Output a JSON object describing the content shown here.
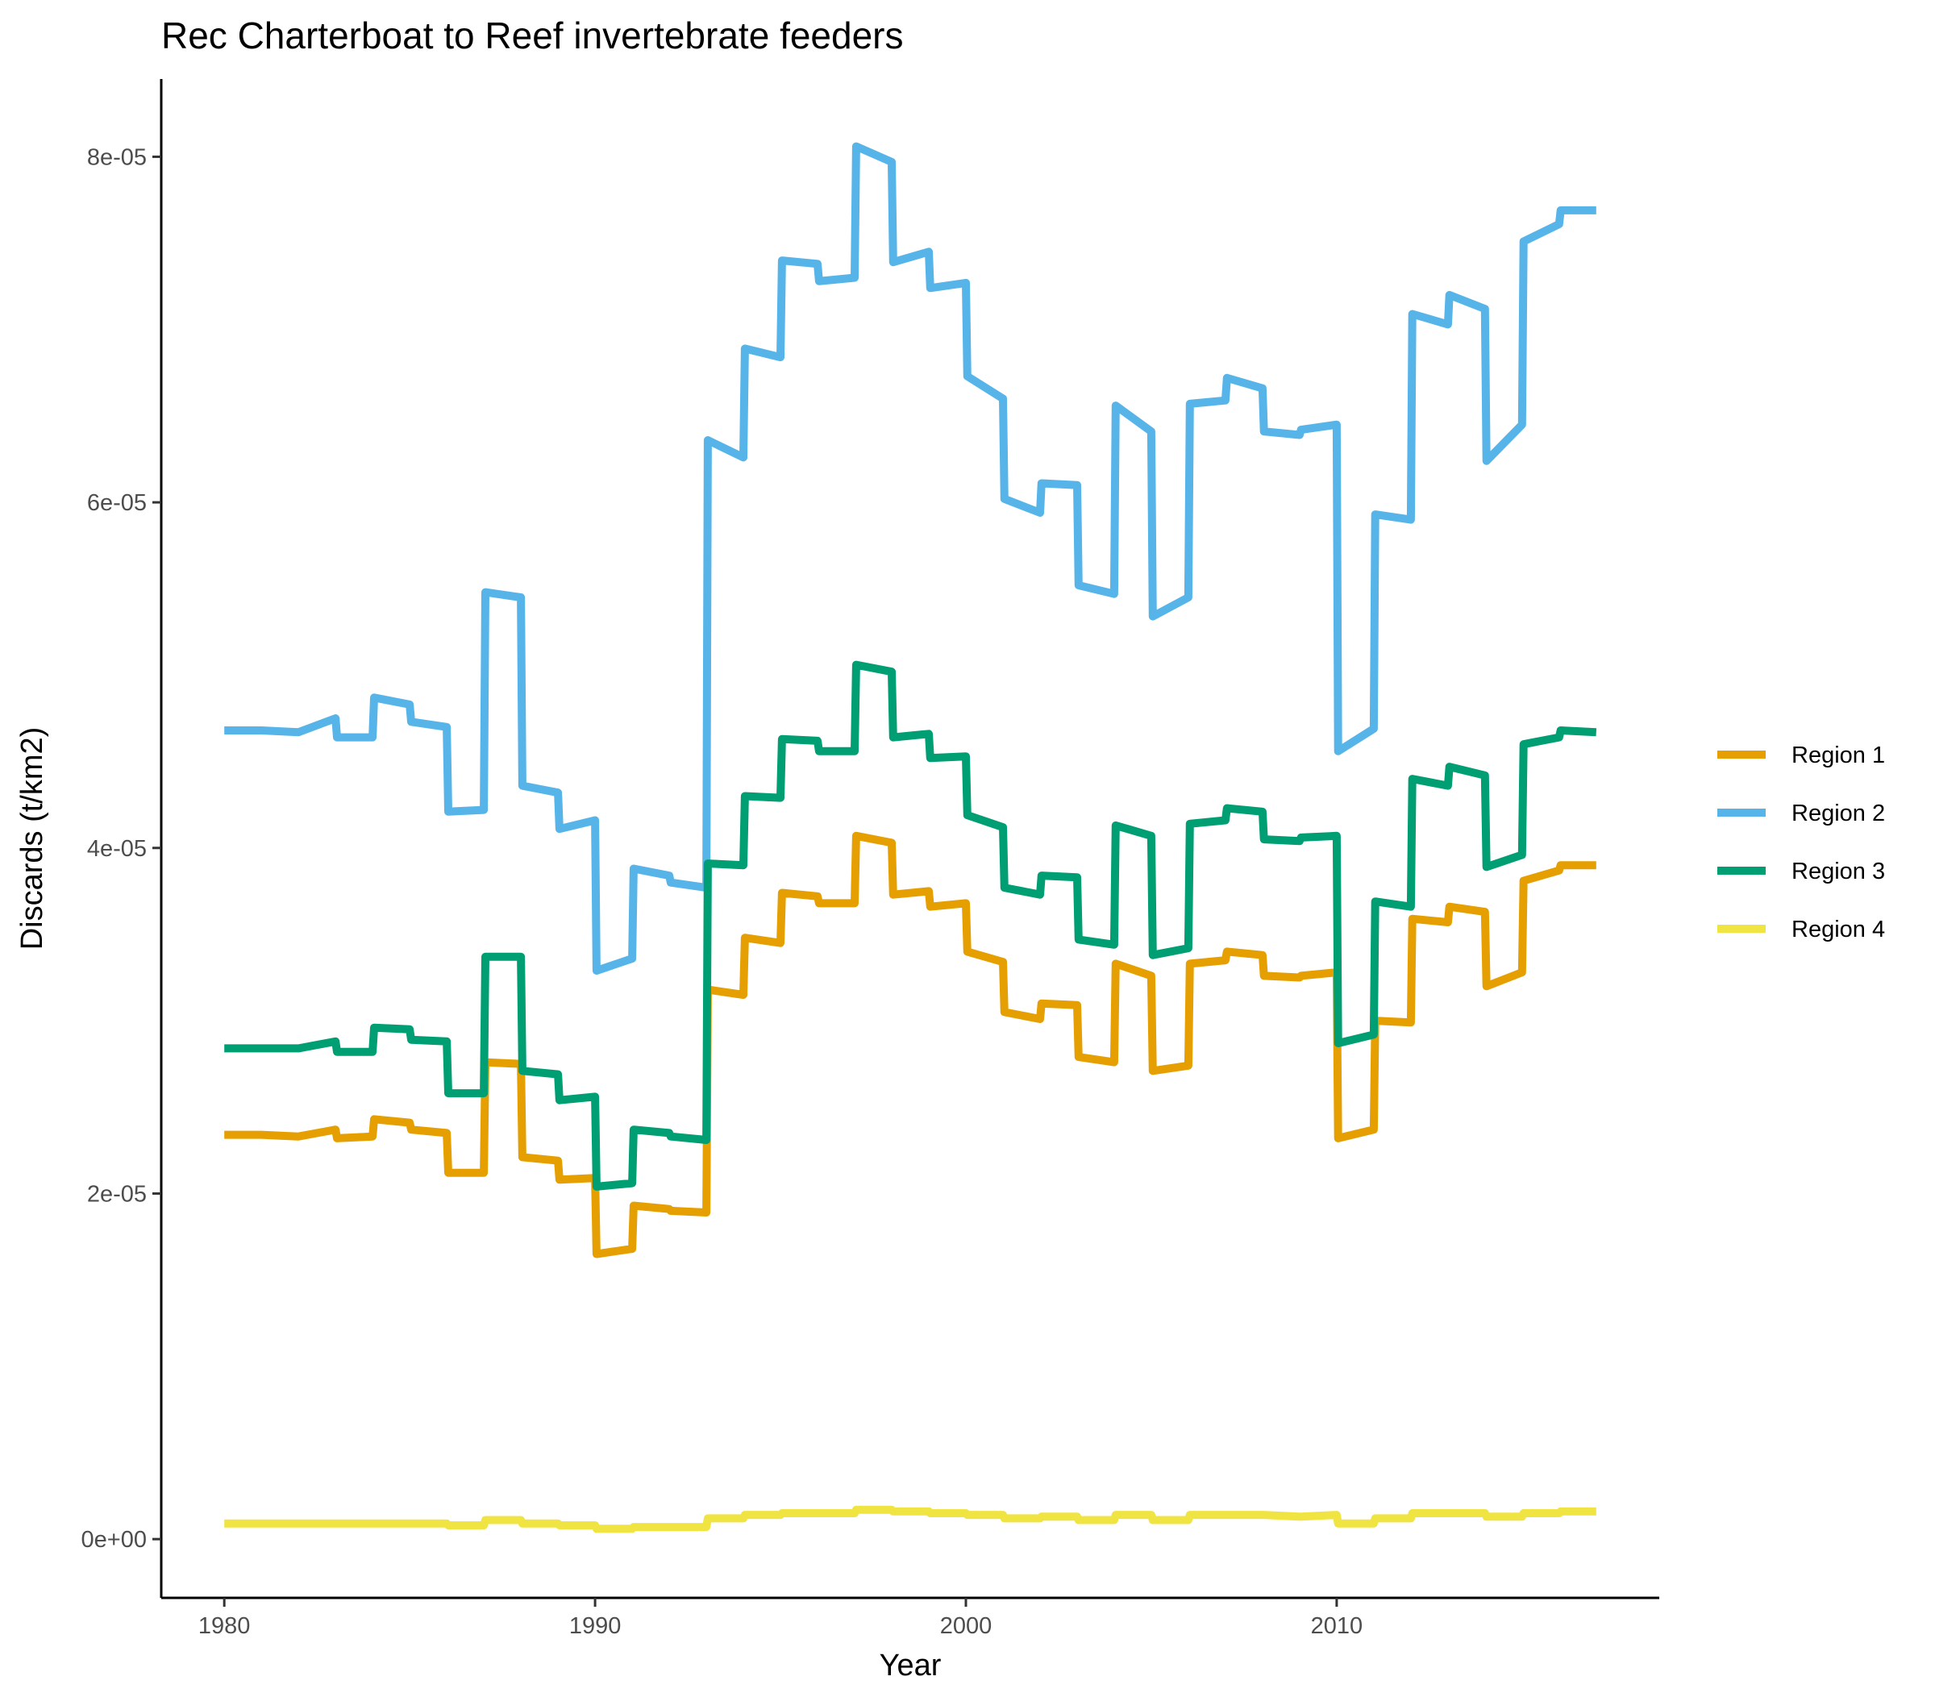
{
  "chart_data": {
    "type": "line",
    "title": "Rec Charterboat to Reef invertebrate feeders",
    "xlabel": "Year",
    "ylabel": "Discards (t/km2)",
    "xlim": [
      1978.3,
      2018.7
    ],
    "ylim": [
      -3.4e-06,
      8.45e-05
    ],
    "x_ticks": [
      1980,
      1990,
      2000,
      2010
    ],
    "y_ticks": [
      0,
      2e-05,
      4e-05,
      6e-05,
      8e-05
    ],
    "y_tick_labels": [
      "0e+00",
      "2e-05",
      "4e-05",
      "6e-05",
      "8e-05"
    ],
    "grid": false,
    "legend_position": "right",
    "x": [
      1980,
      1980.5,
      1981,
      1982,
      1983,
      1983.04,
      1984,
      1984.04,
      1985,
      1985.04,
      1986,
      1986.04,
      1987,
      1987.04,
      1988,
      1988.04,
      1989,
      1989.04,
      1990,
      1990.04,
      1991,
      1991.04,
      1992,
      1992.04,
      1993,
      1993.04,
      1994,
      1994.04,
      1995,
      1995.04,
      1996,
      1996.04,
      1997,
      1997.04,
      1998,
      1998.04,
      1999,
      1999.04,
      2000,
      2000.04,
      2001,
      2001.04,
      2002,
      2002.04,
      2003,
      2003.04,
      2004,
      2004.04,
      2005,
      2005.04,
      2006,
      2006.04,
      2007,
      2007.04,
      2008,
      2008.04,
      2009,
      2009.04,
      2010,
      2010.04,
      2011,
      2011.04,
      2012,
      2012.04,
      2013,
      2013.04,
      2014,
      2014.04,
      2015,
      2015.04,
      2016,
      2016.04,
      2017
    ],
    "series": [
      {
        "name": "Region 1",
        "color": "#E69F00",
        "values": [
          2.34e-05,
          2.34e-05,
          2.34e-05,
          2.33e-05,
          2.37e-05,
          2.32e-05,
          2.33e-05,
          2.43e-05,
          2.41e-05,
          2.37e-05,
          2.35e-05,
          2.12e-05,
          2.12e-05,
          2.76e-05,
          2.75e-05,
          2.21e-05,
          2.19e-05,
          2.08e-05,
          2.09e-05,
          1.65e-05,
          1.68e-05,
          1.93e-05,
          1.91e-05,
          1.9e-05,
          1.89e-05,
          3.18e-05,
          3.15e-05,
          3.48e-05,
          3.45e-05,
          3.74e-05,
          3.72e-05,
          3.68e-05,
          3.68e-05,
          4.07e-05,
          4.03e-05,
          3.73e-05,
          3.75e-05,
          3.66e-05,
          3.68e-05,
          3.4e-05,
          3.34e-05,
          3.05e-05,
          3.01e-05,
          3.1e-05,
          3.09e-05,
          2.79e-05,
          2.76e-05,
          3.33e-05,
          3.26e-05,
          2.71e-05,
          2.74e-05,
          3.33e-05,
          3.35e-05,
          3.4e-05,
          3.38e-05,
          3.26e-05,
          3.25e-05,
          3.26e-05,
          3.28e-05,
          2.32e-05,
          2.37e-05,
          3e-05,
          2.99e-05,
          3.59e-05,
          3.57e-05,
          3.66e-05,
          3.63e-05,
          3.2e-05,
          3.28e-05,
          3.81e-05,
          3.87e-05,
          3.9e-05,
          3.9e-05
        ]
      },
      {
        "name": "Region 2",
        "color": "#56B4E9",
        "values": [
          4.68e-05,
          4.68e-05,
          4.68e-05,
          4.67e-05,
          4.75e-05,
          4.64e-05,
          4.64e-05,
          4.87e-05,
          4.83e-05,
          4.73e-05,
          4.7e-05,
          4.21e-05,
          4.22e-05,
          5.48e-05,
          5.45e-05,
          4.36e-05,
          4.32e-05,
          4.11e-05,
          4.16e-05,
          3.29e-05,
          3.36e-05,
          3.88e-05,
          3.84e-05,
          3.8e-05,
          3.77e-05,
          6.36e-05,
          6.26e-05,
          6.89e-05,
          6.84e-05,
          7.4e-05,
          7.38e-05,
          7.28e-05,
          7.3e-05,
          8.06e-05,
          7.97e-05,
          7.39e-05,
          7.45e-05,
          7.24e-05,
          7.27e-05,
          6.73e-05,
          6.6e-05,
          6.02e-05,
          5.94e-05,
          6.11e-05,
          6.1e-05,
          5.52e-05,
          5.47e-05,
          6.56e-05,
          6.41e-05,
          5.34e-05,
          5.45e-05,
          6.57e-05,
          6.59e-05,
          6.72e-05,
          6.66e-05,
          6.41e-05,
          6.39e-05,
          6.42e-05,
          6.45e-05,
          4.56e-05,
          4.69e-05,
          5.93e-05,
          5.9e-05,
          7.09e-05,
          7.03e-05,
          7.2e-05,
          7.12e-05,
          6.24e-05,
          6.45e-05,
          7.51e-05,
          7.61e-05,
          7.69e-05,
          7.69e-05
        ]
      },
      {
        "name": "Region 3",
        "color": "#009E73",
        "values": [
          2.84e-05,
          2.84e-05,
          2.84e-05,
          2.84e-05,
          2.88e-05,
          2.82e-05,
          2.82e-05,
          2.96e-05,
          2.95e-05,
          2.89e-05,
          2.88e-05,
          2.58e-05,
          2.58e-05,
          3.37e-05,
          3.37e-05,
          2.71e-05,
          2.69e-05,
          2.54e-05,
          2.56e-05,
          2.04e-05,
          2.06e-05,
          2.37e-05,
          2.35e-05,
          2.33e-05,
          2.31e-05,
          3.91e-05,
          3.9e-05,
          4.3e-05,
          4.29e-05,
          4.63e-05,
          4.62e-05,
          4.56e-05,
          4.56e-05,
          5.06e-05,
          5.02e-05,
          4.64e-05,
          4.66e-05,
          4.52e-05,
          4.53e-05,
          4.19e-05,
          4.12e-05,
          3.77e-05,
          3.73e-05,
          3.84e-05,
          3.83e-05,
          3.47e-05,
          3.44e-05,
          4.13e-05,
          4.07e-05,
          3.38e-05,
          3.42e-05,
          4.14e-05,
          4.16e-05,
          4.23e-05,
          4.21e-05,
          4.05e-05,
          4.04e-05,
          4.06e-05,
          4.07e-05,
          2.87e-05,
          2.92e-05,
          3.69e-05,
          3.66e-05,
          4.4e-05,
          4.36e-05,
          4.47e-05,
          4.42e-05,
          3.89e-05,
          3.96e-05,
          4.6e-05,
          4.64e-05,
          4.68e-05,
          4.67e-05
        ]
      },
      {
        "name": "Region 4",
        "color": "#F0E442",
        "values": [
          9e-07,
          9e-07,
          9e-07,
          9e-07,
          9e-07,
          9e-07,
          9e-07,
          9e-07,
          9e-07,
          9e-07,
          9e-07,
          8e-07,
          8e-07,
          1.1e-06,
          1.1e-06,
          9e-07,
          9e-07,
          8e-07,
          8e-07,
          6e-07,
          6e-07,
          7e-07,
          7e-07,
          7e-07,
          7e-07,
          1.2e-06,
          1.2e-06,
          1.4e-06,
          1.4e-06,
          1.5e-06,
          1.5e-06,
          1.5e-06,
          1.5e-06,
          1.7e-06,
          1.7e-06,
          1.6e-06,
          1.6e-06,
          1.5e-06,
          1.5e-06,
          1.4e-06,
          1.4e-06,
          1.2e-06,
          1.2e-06,
          1.3e-06,
          1.3e-06,
          1.1e-06,
          1.1e-06,
          1.4e-06,
          1.4e-06,
          1.1e-06,
          1.1e-06,
          1.4e-06,
          1.4e-06,
          1.4e-06,
          1.4e-06,
          1.4e-06,
          1.3e-06,
          1.3e-06,
          1.4e-06,
          9e-07,
          9e-07,
          1.2e-06,
          1.2e-06,
          1.5e-06,
          1.5e-06,
          1.5e-06,
          1.5e-06,
          1.3e-06,
          1.3e-06,
          1.5e-06,
          1.5e-06,
          1.6e-06,
          1.6e-06
        ]
      }
    ]
  }
}
